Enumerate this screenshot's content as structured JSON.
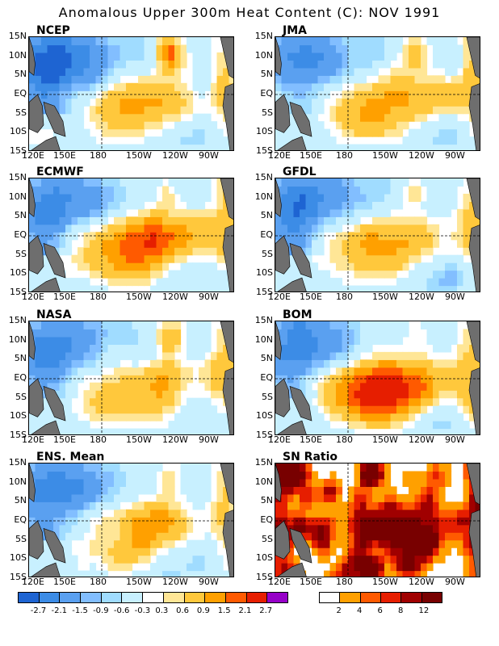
{
  "title": "Anomalous Upper 300m Heat Content (C): NOV 1991",
  "colors": {
    "land": "#6e6e6e",
    "anom_levels": [
      "#1e64d2",
      "#3c8ce6",
      "#5aa0f0",
      "#82beff",
      "#a0dcff",
      "#c8f0ff",
      "#ffffff",
      "#ffe696",
      "#ffc83c",
      "#ffa000",
      "#ff5a00",
      "#e61e00",
      "#a00000",
      "#780000",
      "#9600c8"
    ],
    "sn_levels": [
      "#ffffff",
      "#ffa000",
      "#ff5a00",
      "#e61e00",
      "#a00000",
      "#780000",
      "#9600c8"
    ]
  },
  "axes": {
    "x_ticks": [
      "120E",
      "150E",
      "180",
      "150W",
      "120W",
      "90W"
    ],
    "y_ticks": [
      "15N",
      "10N",
      "5N",
      "EQ",
      "5S",
      "10S",
      "15S"
    ]
  },
  "chart_data": [
    {
      "type": "heatmap",
      "label": "NCEP",
      "field": "anomaly",
      "pattern": {
        "eq_warm_peak": 1.5,
        "west_cold_peak": -2.1,
        "warm_blob_north": 2.1
      }
    },
    {
      "type": "heatmap",
      "label": "JMA",
      "field": "anomaly",
      "pattern": {
        "eq_warm_peak": 1.5,
        "west_cold_peak": -1.5,
        "warm_blob_north": 1.5
      }
    },
    {
      "type": "heatmap",
      "label": "ECMWF",
      "field": "anomaly",
      "pattern": {
        "eq_warm_peak": 2.1,
        "west_cold_peak": -1.5,
        "warm_blob_north": 0.9
      }
    },
    {
      "type": "heatmap",
      "label": "GFDL",
      "field": "anomaly",
      "pattern": {
        "eq_warm_peak": 1.5,
        "west_cold_peak": -1.5,
        "warm_blob_north": 0.9
      }
    },
    {
      "type": "heatmap",
      "label": "NASA",
      "field": "anomaly",
      "pattern": {
        "eq_warm_peak": 1.5,
        "west_cold_peak": -1.5,
        "warm_blob_north": 1.5
      }
    },
    {
      "type": "heatmap",
      "label": "BOM",
      "field": "anomaly",
      "pattern": {
        "eq_warm_peak": 2.7,
        "west_cold_peak": -1.5,
        "warm_blob_north": 0.6
      }
    },
    {
      "type": "heatmap",
      "label": "ENS. Mean",
      "field": "anomaly",
      "pattern": {
        "eq_warm_peak": 1.5,
        "west_cold_peak": -1.5,
        "warm_blob_north": 0.9
      }
    },
    {
      "type": "heatmap",
      "label": "SN Ratio",
      "field": "snr",
      "pattern": {
        "eq_peak": 12,
        "west_peak": 12,
        "background": 1
      }
    }
  ],
  "colorbars": {
    "anomaly_labels": [
      "-2.7",
      "-2.1",
      "-1.5",
      "-0.9",
      "-0.6",
      "-0.3",
      "0.3",
      "0.6",
      "0.9",
      "1.5",
      "2.1",
      "2.7"
    ],
    "sn_labels": [
      "2",
      "4",
      "6",
      "8",
      "12"
    ]
  }
}
